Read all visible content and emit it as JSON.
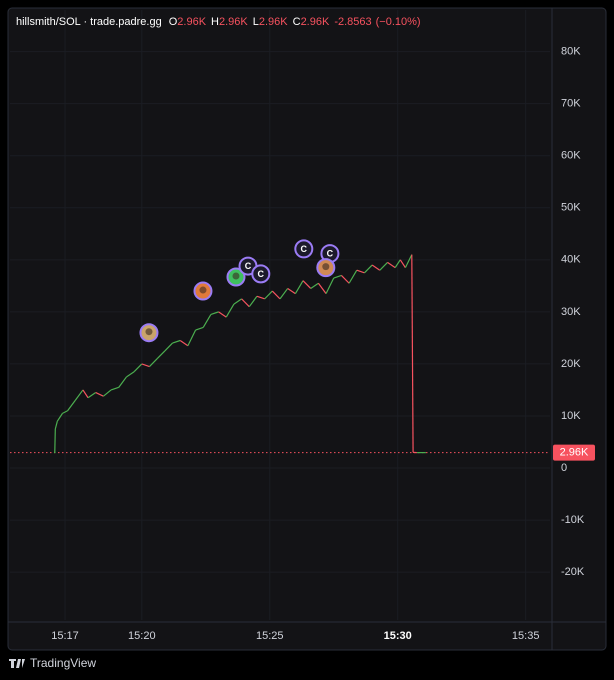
{
  "chart_data": {
    "type": "line",
    "header": {
      "symbol": "hillsmith/SOL · trade.padre.gg",
      "ohlc": [
        {
          "label": "O",
          "value": "2.96K"
        },
        {
          "label": "H",
          "value": "2.96K"
        },
        {
          "label": "L",
          "value": "2.96K"
        },
        {
          "label": "C",
          "value": "2.96K"
        }
      ],
      "change": "-2.8563",
      "change_pct": "(−0.10%)"
    },
    "up_color": "#4caf50",
    "down_color": "#f7525f",
    "x": [
      16.6,
      16.62,
      16.7,
      16.9,
      17.1,
      17.4,
      17.7,
      17.9,
      18.2,
      18.5,
      18.8,
      19.1,
      19.4,
      19.7,
      20.0,
      20.3,
      20.6,
      20.9,
      21.2,
      21.5,
      21.8,
      22.1,
      22.4,
      22.7,
      23.0,
      23.3,
      23.6,
      23.9,
      24.2,
      24.5,
      24.8,
      25.1,
      25.4,
      25.7,
      26.0,
      26.3,
      26.6,
      26.9,
      27.2,
      27.5,
      27.8,
      28.1,
      28.4,
      28.7,
      29.0,
      29.3,
      29.6,
      29.9,
      30.1,
      30.3,
      30.55,
      30.6,
      30.75,
      31.1
    ],
    "values": [
      3000,
      7500,
      9000,
      10500,
      11000,
      13000,
      15000,
      13500,
      14500,
      13800,
      15000,
      15500,
      17500,
      18500,
      20000,
      19500,
      21000,
      22500,
      24000,
      24500,
      23500,
      26500,
      27000,
      29500,
      30000,
      29000,
      31500,
      32500,
      31000,
      33000,
      32500,
      34000,
      32500,
      34500,
      33500,
      36000,
      34500,
      35500,
      33500,
      36500,
      37000,
      35500,
      38000,
      37500,
      39000,
      38000,
      39500,
      38500,
      40000,
      38500,
      41000,
      3000,
      2960,
      2960
    ],
    "xlim": [
      14.85,
      35.95
    ],
    "xticks": [
      {
        "value": 17,
        "label": "15:17"
      },
      {
        "value": 20,
        "label": "15:20"
      },
      {
        "value": 25,
        "label": "15:25"
      },
      {
        "value": 30,
        "label": "15:30",
        "bold": true
      },
      {
        "value": 35,
        "label": "15:35"
      }
    ],
    "ylim": [
      -29200,
      88000
    ],
    "yticks": [
      {
        "value": 80000,
        "label": "80K"
      },
      {
        "value": 70000,
        "label": "70K"
      },
      {
        "value": 60000,
        "label": "60K"
      },
      {
        "value": 50000,
        "label": "50K"
      },
      {
        "value": 40000,
        "label": "40K"
      },
      {
        "value": 30000,
        "label": "30K"
      },
      {
        "value": 20000,
        "label": "20K"
      },
      {
        "value": 10000,
        "label": "10K"
      },
      0,
      {
        "value": -10000,
        "label": "-10K"
      },
      {
        "value": -20000,
        "label": "-20K"
      }
    ],
    "price_line": {
      "value": 2960,
      "label": "2.96K",
      "color": "#f7525f"
    },
    "markers": [
      {
        "x": 20.28,
        "y": 26000,
        "color": "#c9a46a"
      },
      {
        "x": 22.39,
        "y": 34000,
        "color": "#e07a3a"
      },
      {
        "x": 23.68,
        "y": 36700,
        "color": "#3fbf5f"
      },
      {
        "x": 24.15,
        "y": 38800,
        "label": "C"
      },
      {
        "x": 24.65,
        "y": 37300,
        "label": "C"
      },
      {
        "x": 26.33,
        "y": 42100,
        "label": "C"
      },
      {
        "x": 27.35,
        "y": 41200,
        "label": "C"
      },
      {
        "x": 27.19,
        "y": 38500,
        "color": "#d08a55"
      }
    ],
    "footer": "TradingView"
  }
}
